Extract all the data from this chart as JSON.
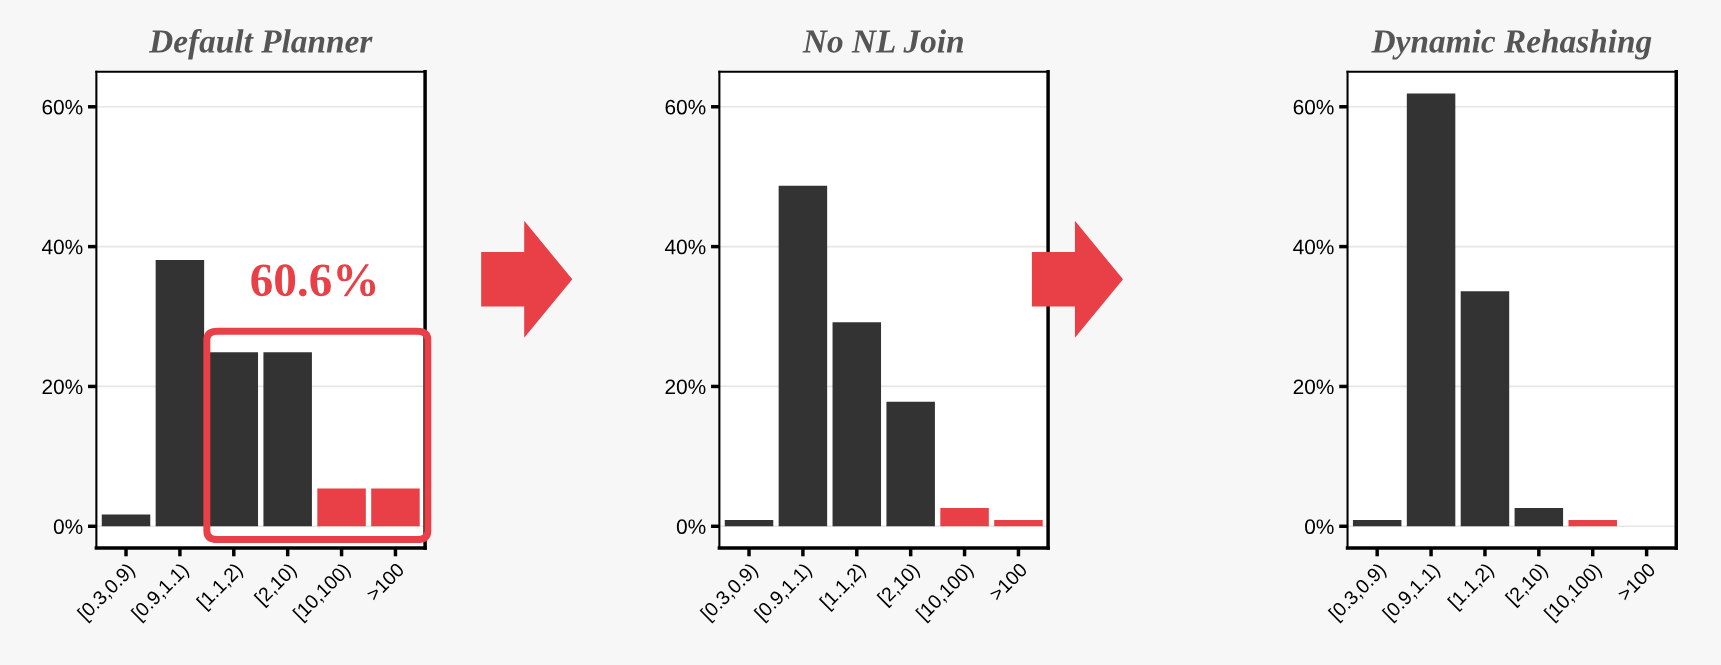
{
  "chart_data": [
    {
      "type": "bar",
      "title": "Default Planner",
      "categories": [
        "[0.3,0.9)",
        "[0.9,1.1)",
        "[1.1,2)",
        "[2,10)",
        "[10,100)",
        ">100"
      ],
      "values": [
        1.7,
        38.1,
        24.9,
        24.9,
        5.4,
        5.4
      ],
      "colors": [
        "#333333",
        "#333333",
        "#333333",
        "#333333",
        "#e84046",
        "#e84046"
      ],
      "ylim": [
        -3.1,
        65
      ],
      "yticks": [
        {
          "value": 0,
          "label": "0%"
        },
        {
          "value": 20,
          "label": "20%"
        },
        {
          "value": 40,
          "label": "40%"
        },
        {
          "value": 60,
          "label": "60%"
        }
      ],
      "grid": "y",
      "annotations": [
        "60.6%"
      ]
    },
    {
      "type": "bar",
      "title": "No NL Join",
      "categories": [
        "[0.3,0.9)",
        "[0.9,1.1)",
        "[1.1,2)",
        "[2,10)",
        "[10,100)",
        ">100"
      ],
      "values": [
        0.9,
        48.7,
        29.2,
        17.8,
        2.6,
        0.9
      ],
      "colors": [
        "#333333",
        "#333333",
        "#333333",
        "#333333",
        "#e84046",
        "#e84046"
      ],
      "ylim": [
        -3.1,
        65
      ],
      "yticks": [
        {
          "value": 0,
          "label": "0%"
        },
        {
          "value": 20,
          "label": "20%"
        },
        {
          "value": 40,
          "label": "40%"
        },
        {
          "value": 60,
          "label": "60%"
        }
      ],
      "grid": "y"
    },
    {
      "type": "bar",
      "title": "Dynamic Rehashing",
      "categories": [
        "[0.3,0.9)",
        "[0.9,1.1)",
        "[1.1,2)",
        "[2,10)",
        "[10,100)",
        ">100"
      ],
      "values": [
        0.9,
        61.9,
        33.6,
        2.6,
        0.9,
        0
      ],
      "colors": [
        "#333333",
        "#333333",
        "#333333",
        "#333333",
        "#e84046",
        "#e84046"
      ],
      "ylim": [
        -3.1,
        65
      ],
      "yticks": [
        {
          "value": 0,
          "label": "0%"
        },
        {
          "value": 20,
          "label": "20%"
        },
        {
          "value": 40,
          "label": "40%"
        },
        {
          "value": 60,
          "label": "60%"
        }
      ],
      "grid": "y"
    }
  ]
}
